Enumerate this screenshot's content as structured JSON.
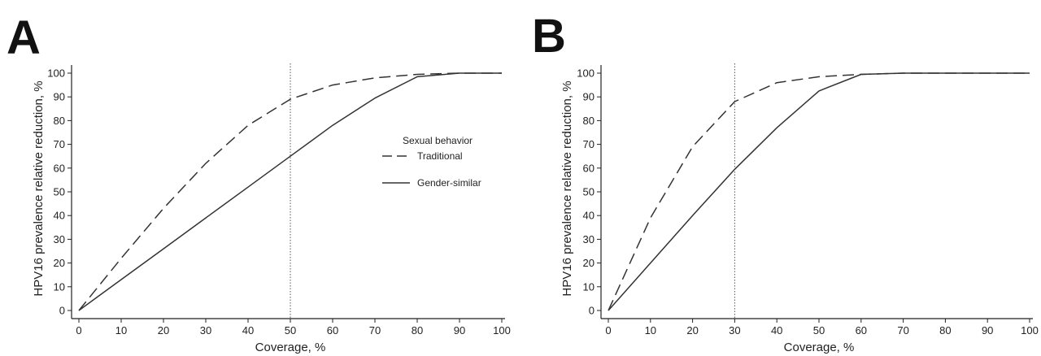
{
  "chart_data": [
    {
      "panel": "A",
      "type": "line",
      "xlabel": "Coverage, %",
      "ylabel": "HPV16 prevalence relative reduction, %",
      "xlim": [
        0,
        100
      ],
      "ylim": [
        0,
        100
      ],
      "xticks": [
        "0",
        "10",
        "20",
        "30",
        "40",
        "50",
        "60",
        "70",
        "80",
        "90",
        "100"
      ],
      "yticks": [
        "0",
        "10",
        "20",
        "30",
        "40",
        "50",
        "60",
        "70",
        "80",
        "90",
        "100"
      ],
      "reference_line_x": 50,
      "legend": {
        "title": "Sexual behavior",
        "entries": [
          "Traditional",
          "Gender-similar"
        ],
        "placement": "right"
      },
      "series": [
        {
          "name": "Traditional",
          "style": "dashed",
          "x": [
            0,
            10,
            20,
            30,
            40,
            50,
            60,
            70,
            80,
            90,
            100
          ],
          "y": [
            0,
            22,
            43,
            62,
            78,
            89,
            95,
            98,
            99.5,
            100,
            100
          ]
        },
        {
          "name": "Gender-similar",
          "style": "solid",
          "x": [
            0,
            10,
            20,
            30,
            40,
            50,
            60,
            70,
            80,
            90,
            100
          ],
          "y": [
            0,
            13,
            26,
            39,
            52,
            65,
            78,
            89.5,
            98.5,
            100,
            100
          ]
        }
      ]
    },
    {
      "panel": "B",
      "type": "line",
      "xlabel": "Coverage, %",
      "ylabel": "HPV16 prevalence relative reduction, %",
      "xlim": [
        0,
        100
      ],
      "ylim": [
        0,
        100
      ],
      "xticks": [
        "0",
        "10",
        "20",
        "30",
        "40",
        "50",
        "60",
        "70",
        "80",
        "90",
        "100"
      ],
      "yticks": [
        "0",
        "10",
        "20",
        "30",
        "40",
        "50",
        "60",
        "70",
        "80",
        "90",
        "100"
      ],
      "reference_line_x": 30,
      "series": [
        {
          "name": "Traditional",
          "style": "dashed",
          "x": [
            0,
            10,
            20,
            30,
            40,
            50,
            60,
            70,
            80,
            90,
            100
          ],
          "y": [
            0,
            39,
            69,
            88,
            96,
            98.5,
            99.5,
            100,
            100,
            100,
            100
          ]
        },
        {
          "name": "Gender-similar",
          "style": "solid",
          "x": [
            0,
            10,
            20,
            30,
            40,
            50,
            60,
            70,
            80,
            90,
            100
          ],
          "y": [
            0,
            20,
            40,
            59.5,
            77,
            92.5,
            99.5,
            100,
            100,
            100,
            100
          ]
        }
      ]
    }
  ]
}
